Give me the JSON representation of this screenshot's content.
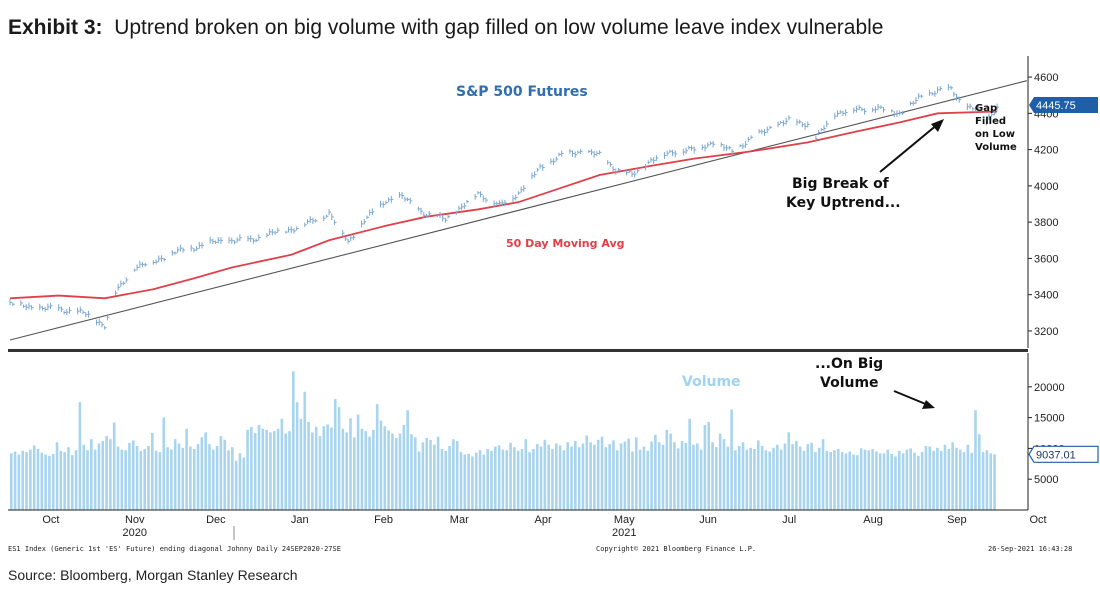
{
  "header": {
    "exhibit_label": "Exhibit 3:",
    "title": "Uptrend broken on big volume with gap filled on low volume leave index vulnerable"
  },
  "footer": {
    "source": "Source: Bloomberg, Morgan Stanley Research",
    "bloomberg_note_left": "ES1 Index (Generic 1st 'ES' Future) ending diagonal Johnny  Daily 24SEP2020-27SE",
    "bloomberg_note_center": "Copyright© 2021 Bloomberg Finance L.P.",
    "bloomberg_note_right": "26-Sep-2021 16:43:28"
  },
  "colors": {
    "price": "#7aa6cc",
    "moving_avg": "#e0404a",
    "trendline": "#555555",
    "volume": "#a8d4ee",
    "price_label": "#2f6fb0",
    "volume_label": "#9fd3f0",
    "last_price_badge": "#1f5fa8"
  },
  "chart_data": [
    {
      "type": "line",
      "title": "S&P 500 Futures",
      "x_start": "2020-09-24",
      "x_end": "2021-09-24",
      "ylim": [
        3150,
        4650
      ],
      "y_ticks": [
        "3200",
        "3400",
        "3600",
        "3800",
        "4000",
        "4200",
        "4400",
        "4600"
      ],
      "last_value_label": "4445.75",
      "series": [
        {
          "name": "S&P 500 Futures",
          "x": [
            "2020-09-24",
            "2020-10-02",
            "2020-10-12",
            "2020-10-21",
            "2020-10-29",
            "2020-11-02",
            "2020-11-09",
            "2020-11-16",
            "2020-11-23",
            "2020-12-01",
            "2020-12-08",
            "2020-12-15",
            "2020-12-22",
            "2020-12-30",
            "2021-01-06",
            "2021-01-13",
            "2021-01-20",
            "2021-01-27",
            "2021-02-02",
            "2021-02-10",
            "2021-02-16",
            "2021-02-25",
            "2021-03-04",
            "2021-03-10",
            "2021-03-16",
            "2021-03-24",
            "2021-03-31",
            "2021-04-08",
            "2021-04-16",
            "2021-04-23",
            "2021-04-30",
            "2021-05-06",
            "2021-05-12",
            "2021-05-19",
            "2021-05-27",
            "2021-06-04",
            "2021-06-11",
            "2021-06-18",
            "2021-06-25",
            "2021-07-02",
            "2021-07-09",
            "2021-07-16",
            "2021-07-19",
            "2021-07-26",
            "2021-08-03",
            "2021-08-10",
            "2021-08-19",
            "2021-08-26",
            "2021-09-02",
            "2021-09-07",
            "2021-09-10",
            "2021-09-13",
            "2021-09-17",
            "2021-09-20",
            "2021-09-24"
          ],
          "y": [
            3350,
            3330,
            3320,
            3300,
            3230,
            3410,
            3550,
            3580,
            3630,
            3660,
            3690,
            3700,
            3700,
            3740,
            3760,
            3800,
            3850,
            3690,
            3810,
            3920,
            3940,
            3840,
            3820,
            3880,
            3960,
            3890,
            3960,
            4100,
            4170,
            4190,
            4170,
            4090,
            4060,
            4140,
            4190,
            4200,
            4240,
            4190,
            4260,
            4320,
            4360,
            4340,
            4260,
            4400,
            4420,
            4430,
            4400,
            4480,
            4530,
            4530,
            4470,
            4440,
            4420,
            4350,
            4440
          ]
        },
        {
          "name": "50 Day Moving Avg",
          "x": [
            "2020-09-24",
            "2020-10-12",
            "2020-10-29",
            "2020-11-16",
            "2020-12-01",
            "2020-12-15",
            "2021-01-06",
            "2021-01-20",
            "2021-02-10",
            "2021-02-25",
            "2021-03-16",
            "2021-03-31",
            "2021-04-16",
            "2021-04-30",
            "2021-05-19",
            "2021-06-04",
            "2021-06-25",
            "2021-07-16",
            "2021-08-03",
            "2021-08-19",
            "2021-09-02",
            "2021-09-24"
          ],
          "y": [
            3380,
            3395,
            3380,
            3430,
            3490,
            3550,
            3620,
            3700,
            3780,
            3830,
            3870,
            3910,
            3990,
            4060,
            4110,
            4150,
            4190,
            4240,
            4300,
            4350,
            4400,
            4410
          ]
        }
      ],
      "trendline": {
        "x": [
          "2020-09-24",
          "2021-10-05"
        ],
        "y": [
          3150,
          4580
        ]
      },
      "annotations": {
        "chart_title": "S&P 500 Futures",
        "ma_label": "50 Day Moving Avg",
        "break_label_1": "Big Break of",
        "break_label_2": "Key Uptrend...",
        "gap_label_1": "Gap",
        "gap_label_2": "Filled",
        "gap_label_3": "on Low",
        "gap_label_4": "Volume"
      }
    },
    {
      "type": "bar",
      "title": "Volume",
      "x_start": "2020-09-24",
      "x_end": "2021-09-24",
      "ylim": [
        0,
        25000
      ],
      "y_ticks": [
        "5000",
        "10000",
        "15000",
        "20000"
      ],
      "last_value_label": "9037.01",
      "x_labels": [
        "Oct",
        "Nov",
        "Dec",
        "Jan",
        "Feb",
        "Mar",
        "Apr",
        "May",
        "Jun",
        "Jul",
        "Aug",
        "Sep",
        "Oct"
      ],
      "x_label_dates": [
        "2020-10-01",
        "2020-11-01",
        "2020-12-01",
        "2021-01-01",
        "2021-02-01",
        "2021-03-01",
        "2021-04-01",
        "2021-05-01",
        "2021-06-01",
        "2021-07-01",
        "2021-08-01",
        "2021-09-01",
        "2021-10-01"
      ],
      "year_labels": [
        "2020",
        "2021"
      ],
      "year_label_dates": [
        "2020-11-01",
        "2021-05-01"
      ],
      "values": [
        9200,
        9500,
        9000,
        9600,
        9400,
        9800,
        10500,
        9900,
        9300,
        9000,
        8800,
        9100,
        11000,
        9600,
        9400,
        10200,
        8900,
        9700,
        17500,
        10600,
        9700,
        11500,
        9800,
        10800,
        11200,
        12000,
        11500,
        14200,
        10300,
        9800,
        9700,
        10900,
        11300,
        10400,
        9600,
        9900,
        10400,
        12500,
        9600,
        9400,
        15000,
        10200,
        9800,
        11500,
        10800,
        10100,
        13200,
        10300,
        9900,
        10700,
        11800,
        12600,
        10700,
        9800,
        10400,
        12000,
        11400,
        9700,
        10200,
        8000,
        9200,
        8500,
        13000,
        13500,
        12500,
        13800,
        13200,
        13000,
        12600,
        12800,
        13200,
        14800,
        12400,
        12800,
        22500,
        17500,
        14800,
        19200,
        14300,
        12600,
        13500,
        12000,
        13600,
        13900,
        13400,
        18000,
        16700,
        13200,
        12600,
        14900,
        11800,
        15500,
        13200,
        12800,
        11900,
        13000,
        17200,
        14500,
        13600,
        12900,
        12400,
        11700,
        12400,
        13800,
        16200,
        12300,
        11800,
        9500,
        11000,
        11700,
        11400,
        10600,
        11900,
        9900,
        9600,
        10400,
        11500,
        11200,
        9400,
        9000,
        9100,
        8700,
        9300,
        9700,
        9000,
        9900,
        9600,
        10300,
        10500,
        9800,
        9700,
        10900,
        10200,
        9600,
        9900,
        11500,
        9400,
        9900,
        10700,
        10300,
        11400,
        10600,
        9900,
        10800,
        10500,
        9700,
        11000,
        10300,
        11200,
        10200,
        10800,
        12100,
        11000,
        10600,
        11400,
        11900,
        10200,
        10700,
        11300,
        9700,
        10800,
        11100,
        11600,
        9500,
        11800,
        9800,
        10300,
        9600,
        11100,
        12200,
        11000,
        10600,
        13000,
        12400,
        11000,
        10000,
        11200,
        10900,
        14800,
        10600,
        10800,
        9800,
        13800,
        14300,
        11000,
        10200,
        12400,
        11500,
        10300,
        16300,
        9700,
        10400,
        11000,
        9800,
        10100,
        9900,
        11300,
        10400,
        9700,
        9500,
        10100,
        10600,
        9800,
        10800,
        12600,
        10700,
        11200,
        10300,
        9600,
        10700,
        10900,
        9400,
        10100,
        11500,
        9600,
        9400,
        9700,
        9900,
        9400,
        9200,
        9500,
        9000,
        8900,
        10000,
        9800,
        9700,
        9900,
        9500,
        9200,
        9200,
        9800,
        9100,
        8700,
        9600,
        9200,
        9800,
        10000,
        9300,
        8800,
        9400,
        10400,
        10300,
        9600,
        10100,
        9600,
        10600,
        9900,
        11000,
        10100,
        9800,
        9400,
        10600,
        9300,
        16200,
        12300,
        9400,
        9700,
        9200,
        9037
      ]
    }
  ]
}
